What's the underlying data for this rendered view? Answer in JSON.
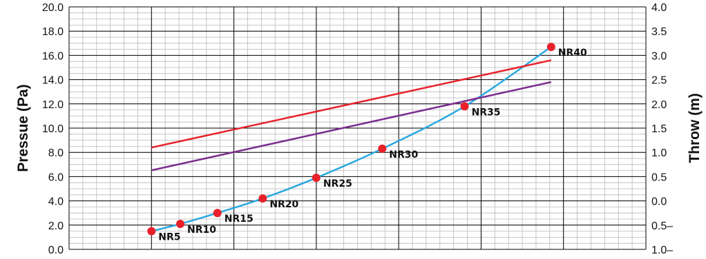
{
  "colors": {
    "background": "#ffffff",
    "major_grid": "#000000",
    "minor_grid": "#b8b8b8",
    "pressure_line": "#29a8e0",
    "marker": "#e8212a",
    "red_line": "#e8212a",
    "purple_line": "#7b2d8e"
  },
  "chart_data": {
    "type": "line",
    "title": "",
    "ylabel": "Pressue (Pa)",
    "y2label": "Throw (m)",
    "ylim": [
      0,
      20
    ],
    "y2lim": [
      -1.0,
      4.0
    ],
    "y_ticks": [
      "0.0",
      "2.0",
      "4.0",
      "6.0",
      "8.0",
      "10.0",
      "12.0",
      "14.0",
      "16.0",
      "18.0",
      "20.0"
    ],
    "y2_ticks": [
      "1.0–",
      "0.5–",
      "0.0",
      "0.5",
      "1.0",
      "1.5",
      "2.0",
      "2.5",
      "3.0",
      "3.5",
      "4.0"
    ],
    "xlim": [
      0,
      7
    ],
    "grid": true,
    "series": [
      {
        "color": "#29a8e0",
        "points": [
          {
            "x": 1.0,
            "y": 1.5,
            "label": "NR5"
          },
          {
            "x": 1.35,
            "y": 2.1,
            "label": "NR10"
          },
          {
            "x": 1.8,
            "y": 3.0,
            "label": "NR15"
          },
          {
            "x": 2.35,
            "y": 4.2,
            "label": "NR20"
          },
          {
            "x": 3.0,
            "y": 5.9,
            "label": "NR25"
          },
          {
            "x": 3.8,
            "y": 8.3,
            "label": "NR30"
          },
          {
            "x": 4.8,
            "y": 11.8,
            "label": "NR35"
          },
          {
            "x": 5.85,
            "y": 16.7,
            "label": "NR40"
          }
        ]
      },
      {
        "color": "#e8212a",
        "axis": "right",
        "x": [
          1.0,
          5.85
        ],
        "y": [
          1.1,
          2.9
        ]
      },
      {
        "color": "#7b2d8e",
        "axis": "right",
        "x": [
          1.0,
          5.85
        ],
        "y": [
          0.63,
          2.45
        ]
      }
    ]
  }
}
